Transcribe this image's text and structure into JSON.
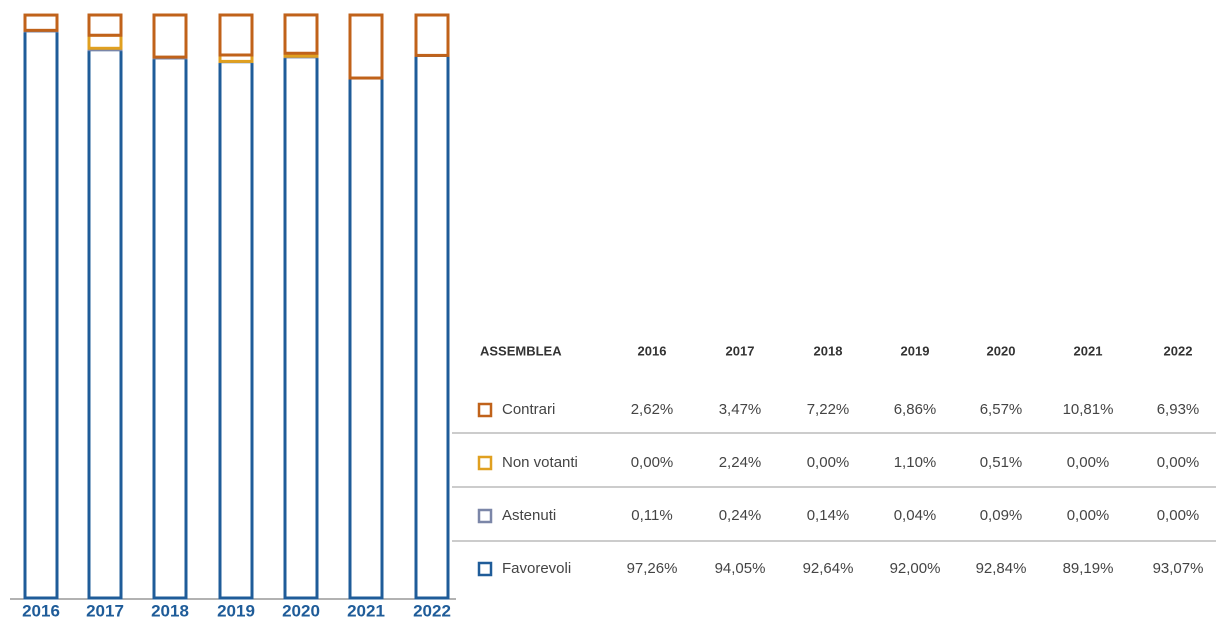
{
  "chart_data": {
    "type": "bar",
    "stacked": true,
    "categories": [
      "2016",
      "2017",
      "2018",
      "2019",
      "2020",
      "2021",
      "2022"
    ],
    "ylim": [
      0,
      100
    ],
    "table_header": "ASSEMBLEA",
    "series": [
      {
        "name": "Contrari",
        "color": "#c0621a",
        "values": [
          2.62,
          3.47,
          7.22,
          6.86,
          6.57,
          10.81,
          6.93
        ],
        "value_labels": [
          "2,62%",
          "3,47%",
          "7,22%",
          "6,86%",
          "6,57%",
          "10,81%",
          "6,93%"
        ]
      },
      {
        "name": "Non votanti",
        "color": "#e0a020",
        "values": [
          0,
          2.24,
          0,
          1.1,
          0.51,
          0,
          0
        ],
        "value_labels": [
          "0,00%",
          "2,24%",
          "0,00%",
          "1,10%",
          "0,51%",
          "0,00%",
          "0,00%"
        ]
      },
      {
        "name": "Astenuti",
        "color": "#7b86a8",
        "values": [
          0.11,
          0.24,
          0.14,
          0.04,
          0.09,
          0,
          0
        ],
        "value_labels": [
          "0,11%",
          "0,24%",
          "0,14%",
          "0,04%",
          "0,09%",
          "0,00%",
          "0,00%"
        ]
      },
      {
        "name": "Favorevoli",
        "color": "#1f5c99",
        "values": [
          97.26,
          94.05,
          92.64,
          92.0,
          92.84,
          89.19,
          93.07
        ],
        "value_labels": [
          "97,26%",
          "94,05%",
          "92,64%",
          "92,00%",
          "92,84%",
          "89,19%",
          "93,07%"
        ]
      }
    ]
  }
}
